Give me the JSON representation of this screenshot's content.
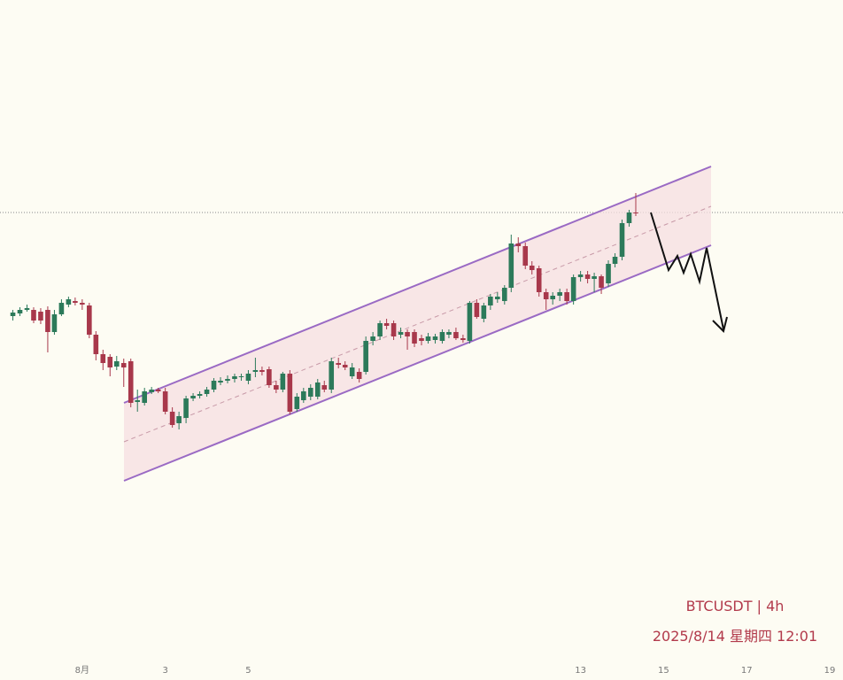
{
  "chart_data": {
    "type": "candlestick",
    "annotations": [
      "BTCUSDT | 4h",
      "2025/8/14 星期四 12:01"
    ],
    "xlim": [
      -0.98,
      19.32
    ],
    "xticks": [
      {
        "value": 1,
        "label": "8月"
      },
      3,
      5,
      13,
      15,
      17,
      19
    ],
    "ylim": [
      0,
      600
    ],
    "up_color": "#2c7a5a",
    "down_color": "#a8384b",
    "x": [
      -0.67,
      -0.5,
      -0.33,
      -0.17,
      0,
      0.17,
      0.33,
      0.5,
      0.67,
      0.83,
      1,
      1.17,
      1.33,
      1.5,
      1.67,
      1.83,
      2,
      2.17,
      2.33,
      2.5,
      2.67,
      2.83,
      3,
      3.17,
      3.33,
      3.5,
      3.67,
      3.83,
      4,
      4.17,
      4.33,
      4.5,
      4.67,
      4.83,
      5,
      5.17,
      5.33,
      5.5,
      5.67,
      5.83,
      6,
      6.17,
      6.33,
      6.5,
      6.67,
      6.83,
      7,
      7.17,
      7.33,
      7.5,
      7.67,
      7.83,
      8,
      8.17,
      8.33,
      8.5,
      8.67,
      8.83,
      9,
      9.17,
      9.33,
      9.5,
      9.67,
      9.83,
      10,
      10.17,
      10.33,
      10.5,
      10.67,
      10.83,
      11,
      11.17,
      11.33,
      11.5,
      11.67,
      11.83,
      12,
      12.17,
      12.33,
      12.5,
      12.67,
      12.83,
      13,
      13.17,
      13.33,
      13.5,
      13.67,
      13.83,
      14,
      14.17,
      14.33
    ],
    "open": [
      383,
      386,
      390,
      390,
      388,
      390,
      365,
      385,
      396,
      400,
      398,
      395,
      362,
      340,
      337,
      326,
      330,
      332,
      286,
      285,
      297,
      300,
      298,
      275,
      262,
      268,
      290,
      293,
      295,
      300,
      308,
      310,
      312,
      314,
      310,
      320,
      322,
      323,
      305,
      300,
      318,
      278,
      288,
      292,
      292,
      305,
      300,
      330,
      328,
      315,
      320,
      320,
      355,
      360,
      375,
      375,
      362,
      365,
      365,
      358,
      355,
      356,
      355,
      362,
      365,
      358,
      355,
      398,
      380,
      395,
      402,
      400,
      415,
      465,
      462,
      440,
      437,
      410,
      402,
      406,
      410,
      400,
      427,
      430,
      425,
      428,
      420,
      442,
      450,
      488,
      500
    ],
    "high": [
      390,
      393,
      396,
      393,
      392,
      394,
      390,
      402,
      405,
      404,
      402,
      398,
      366,
      345,
      340,
      338,
      335,
      335,
      300,
      302,
      303,
      302,
      302,
      280,
      275,
      293,
      296,
      298,
      303,
      313,
      314,
      316,
      318,
      318,
      322,
      336,
      326,
      326,
      310,
      320,
      322,
      296,
      302,
      306,
      312,
      310,
      336,
      336,
      332,
      330,
      324,
      360,
      365,
      378,
      380,
      378,
      370,
      368,
      368,
      362,
      364,
      363,
      368,
      368,
      370,
      362,
      400,
      402,
      398,
      408,
      410,
      418,
      475,
      472,
      466,
      445,
      440,
      414,
      410,
      414,
      414,
      430,
      434,
      434,
      432,
      430,
      446,
      454,
      492,
      503,
      522
    ],
    "low": [
      378,
      383,
      388,
      375,
      374,
      342,
      362,
      383,
      393,
      395,
      390,
      358,
      333,
      322,
      315,
      322,
      303,
      280,
      275,
      282,
      295,
      296,
      272,
      257,
      255,
      262,
      287,
      290,
      292,
      297,
      305,
      307,
      308,
      310,
      306,
      314,
      316,
      302,
      296,
      297,
      272,
      275,
      285,
      288,
      289,
      297,
      296,
      324,
      322,
      312,
      308,
      317,
      350,
      356,
      368,
      356,
      358,
      345,
      348,
      350,
      352,
      352,
      352,
      358,
      356,
      353,
      352,
      380,
      376,
      390,
      398,
      396,
      410,
      455,
      436,
      430,
      405,
      390,
      396,
      400,
      396,
      396,
      422,
      420,
      410,
      408,
      416,
      438,
      446,
      484,
      496
    ],
    "close": [
      387,
      390,
      392,
      378,
      378,
      365,
      385,
      398,
      402,
      398,
      396,
      362,
      340,
      330,
      325,
      332,
      325,
      285,
      288,
      298,
      300,
      298,
      275,
      260,
      270,
      290,
      293,
      295,
      300,
      310,
      310,
      312,
      315,
      315,
      318,
      322,
      320,
      305,
      300,
      318,
      275,
      292,
      298,
      302,
      308,
      300,
      332,
      328,
      325,
      325,
      312,
      355,
      360,
      375,
      372,
      360,
      365,
      360,
      352,
      355,
      360,
      360,
      365,
      365,
      358,
      356,
      398,
      382,
      395,
      405,
      405,
      415,
      465,
      462,
      440,
      435,
      410,
      402,
      406,
      410,
      400,
      427,
      430,
      425,
      428,
      415,
      442,
      450,
      488,
      500,
      499
    ]
  }
}
